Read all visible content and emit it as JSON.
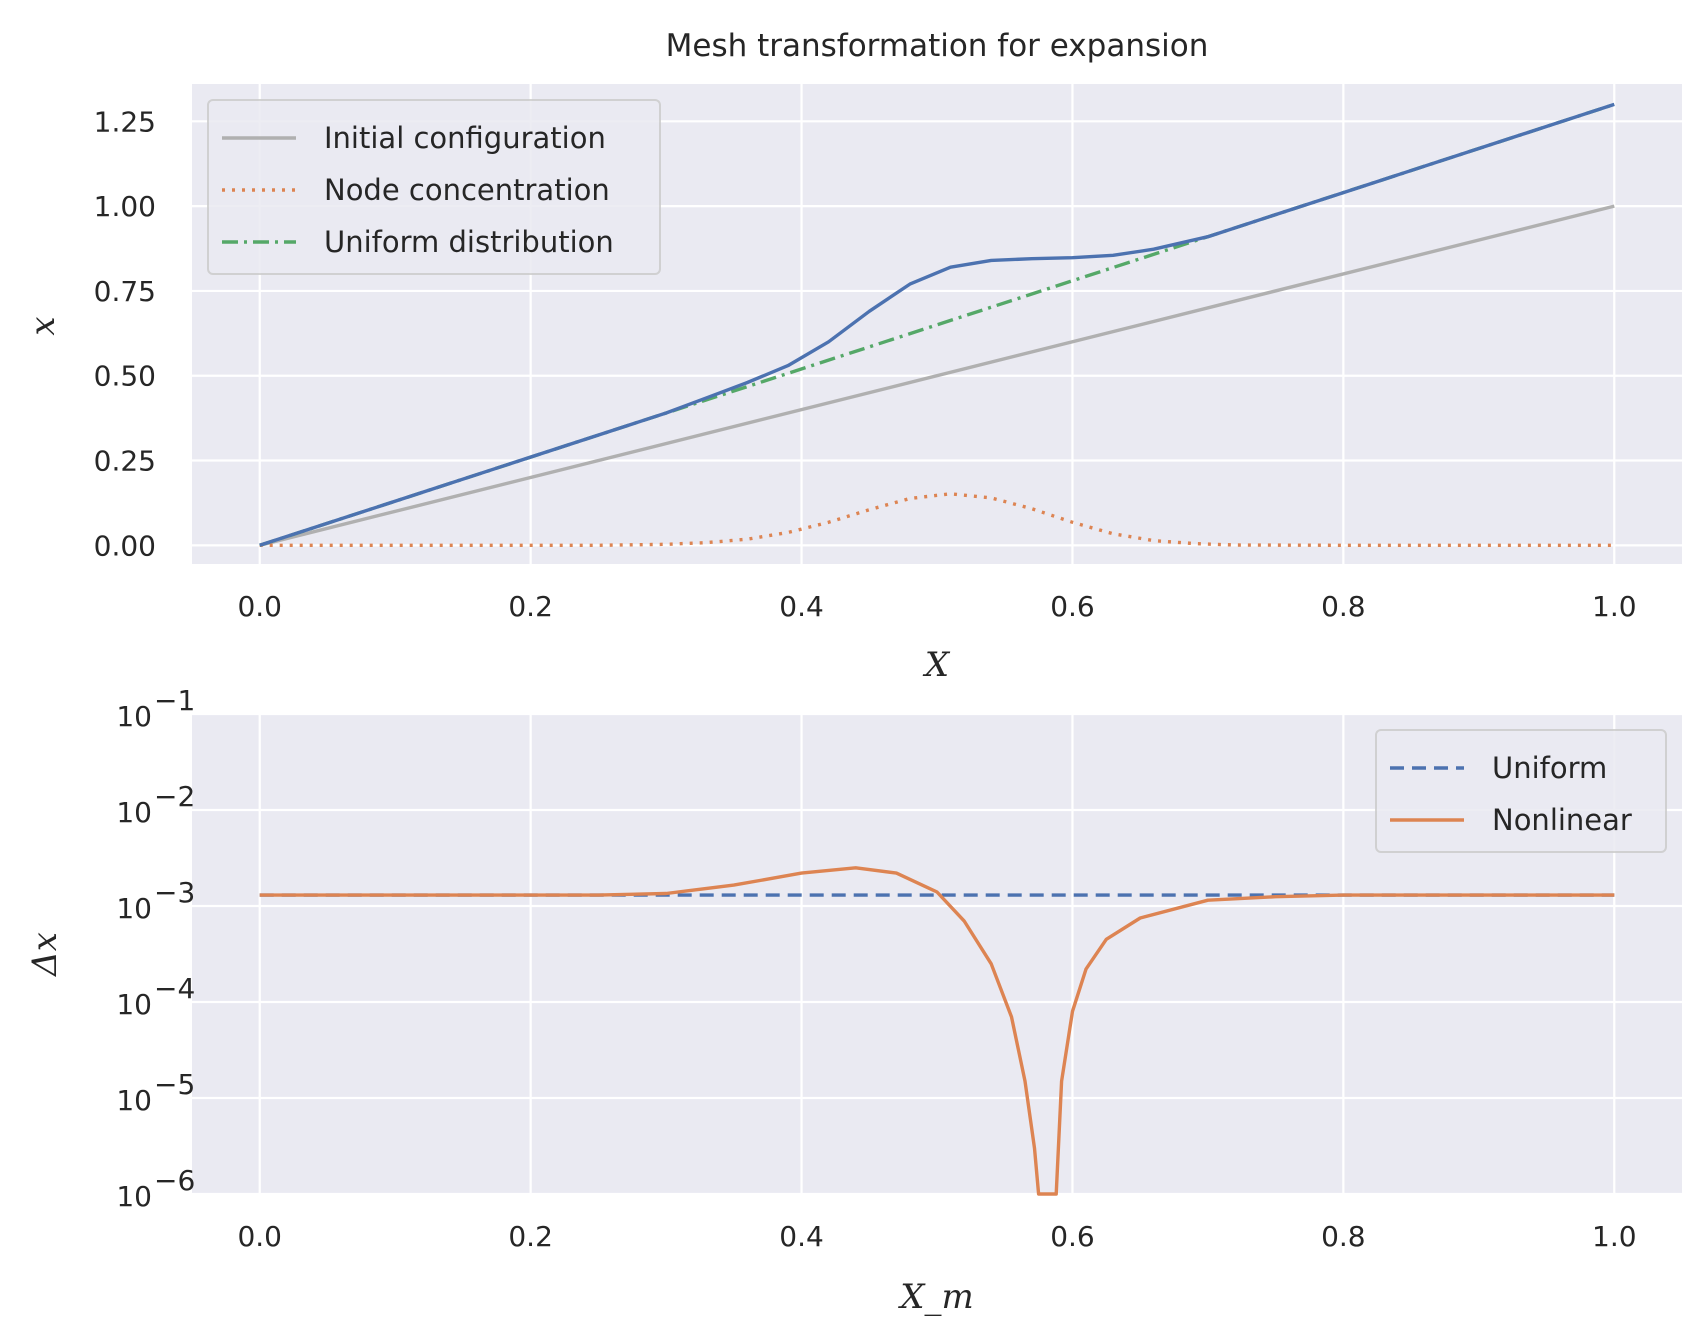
{
  "chart_data": [
    {
      "type": "line",
      "title": "Mesh transformation for expansion",
      "xlabel": "X",
      "ylabel": "x",
      "xlim": [
        -0.05,
        1.05
      ],
      "ylim": [
        -0.055,
        1.36
      ],
      "xticks": [
        0.0,
        0.2,
        0.4,
        0.6,
        0.8,
        1.0
      ],
      "xtick_labels": [
        "0.0",
        "0.2",
        "0.4",
        "0.6",
        "0.8",
        "1.0"
      ],
      "yticks": [
        0.0,
        0.25,
        0.5,
        0.75,
        1.0,
        1.25
      ],
      "ytick_labels": [
        "0.00",
        "0.25",
        "0.50",
        "0.75",
        "1.00",
        "1.25"
      ],
      "grid": true,
      "legend_position": "top-left",
      "series": [
        {
          "name": "Initial configuration",
          "color": "#b0b0b0",
          "style": "solid",
          "x": [
            0.0,
            1.0
          ],
          "y": [
            0.0,
            1.0
          ]
        },
        {
          "name": "Node concentration",
          "color": "#dd8452",
          "style": "dotted",
          "x": [
            0.0,
            0.25,
            0.3,
            0.33,
            0.36,
            0.39,
            0.42,
            0.45,
            0.48,
            0.51,
            0.54,
            0.57,
            0.6,
            0.63,
            0.66,
            0.69,
            0.72,
            0.8,
            1.0
          ],
          "y": [
            0.0,
            0.0,
            0.003,
            0.008,
            0.018,
            0.038,
            0.068,
            0.105,
            0.138,
            0.152,
            0.14,
            0.108,
            0.068,
            0.034,
            0.014,
            0.005,
            0.001,
            0.0,
            0.0
          ]
        },
        {
          "name": "Uniform distribution",
          "color": "#55a868",
          "style": "dashdot",
          "x": [
            0.0,
            1.0
          ],
          "y": [
            0.0,
            1.3
          ]
        },
        {
          "name": "",
          "color": "#4c72b0",
          "style": "solid",
          "x": [
            0.0,
            0.3,
            0.33,
            0.36,
            0.39,
            0.42,
            0.45,
            0.48,
            0.51,
            0.54,
            0.57,
            0.6,
            0.63,
            0.66,
            0.7,
            0.75,
            0.8,
            0.9,
            1.0
          ],
          "y": [
            0.0,
            0.39,
            0.435,
            0.48,
            0.53,
            0.6,
            0.69,
            0.77,
            0.82,
            0.84,
            0.845,
            0.848,
            0.855,
            0.873,
            0.91,
            0.975,
            1.04,
            1.17,
            1.3
          ]
        }
      ]
    },
    {
      "type": "line",
      "xlabel": "X_m",
      "ylabel": "Δx",
      "xlim": [
        -0.05,
        1.05
      ],
      "ylim": [
        1e-06,
        0.1
      ],
      "yscale": "log",
      "xticks": [
        0.0,
        0.2,
        0.4,
        0.6,
        0.8,
        1.0
      ],
      "xtick_labels": [
        "0.0",
        "0.2",
        "0.4",
        "0.6",
        "0.8",
        "1.0"
      ],
      "ytick_exponents": [
        -6,
        -5,
        -4,
        -3,
        -2,
        -1
      ],
      "ytick_base": "10",
      "grid": true,
      "legend_position": "top-right",
      "series": [
        {
          "name": "Uniform",
          "color": "#4c72b0",
          "style": "dashed",
          "x": [
            0.0,
            1.0
          ],
          "y": [
            0.0013,
            0.0013
          ]
        },
        {
          "name": "Nonlinear",
          "color": "#dd8452",
          "style": "solid",
          "x": [
            0.0,
            0.25,
            0.3,
            0.35,
            0.4,
            0.44,
            0.47,
            0.5,
            0.52,
            0.54,
            0.555,
            0.565,
            0.572,
            0.575,
            0.588,
            0.592,
            0.6,
            0.61,
            0.625,
            0.65,
            0.7,
            0.75,
            0.8,
            1.0
          ],
          "y": [
            0.0013,
            0.0013,
            0.00135,
            0.00165,
            0.0022,
            0.0025,
            0.0022,
            0.0014,
            0.0007,
            0.00025,
            7e-05,
            1.5e-05,
            3e-06,
            1e-06,
            1e-06,
            1.5e-05,
            8e-05,
            0.00022,
            0.00045,
            0.00075,
            0.00115,
            0.00125,
            0.0013,
            0.0013
          ]
        }
      ]
    }
  ]
}
